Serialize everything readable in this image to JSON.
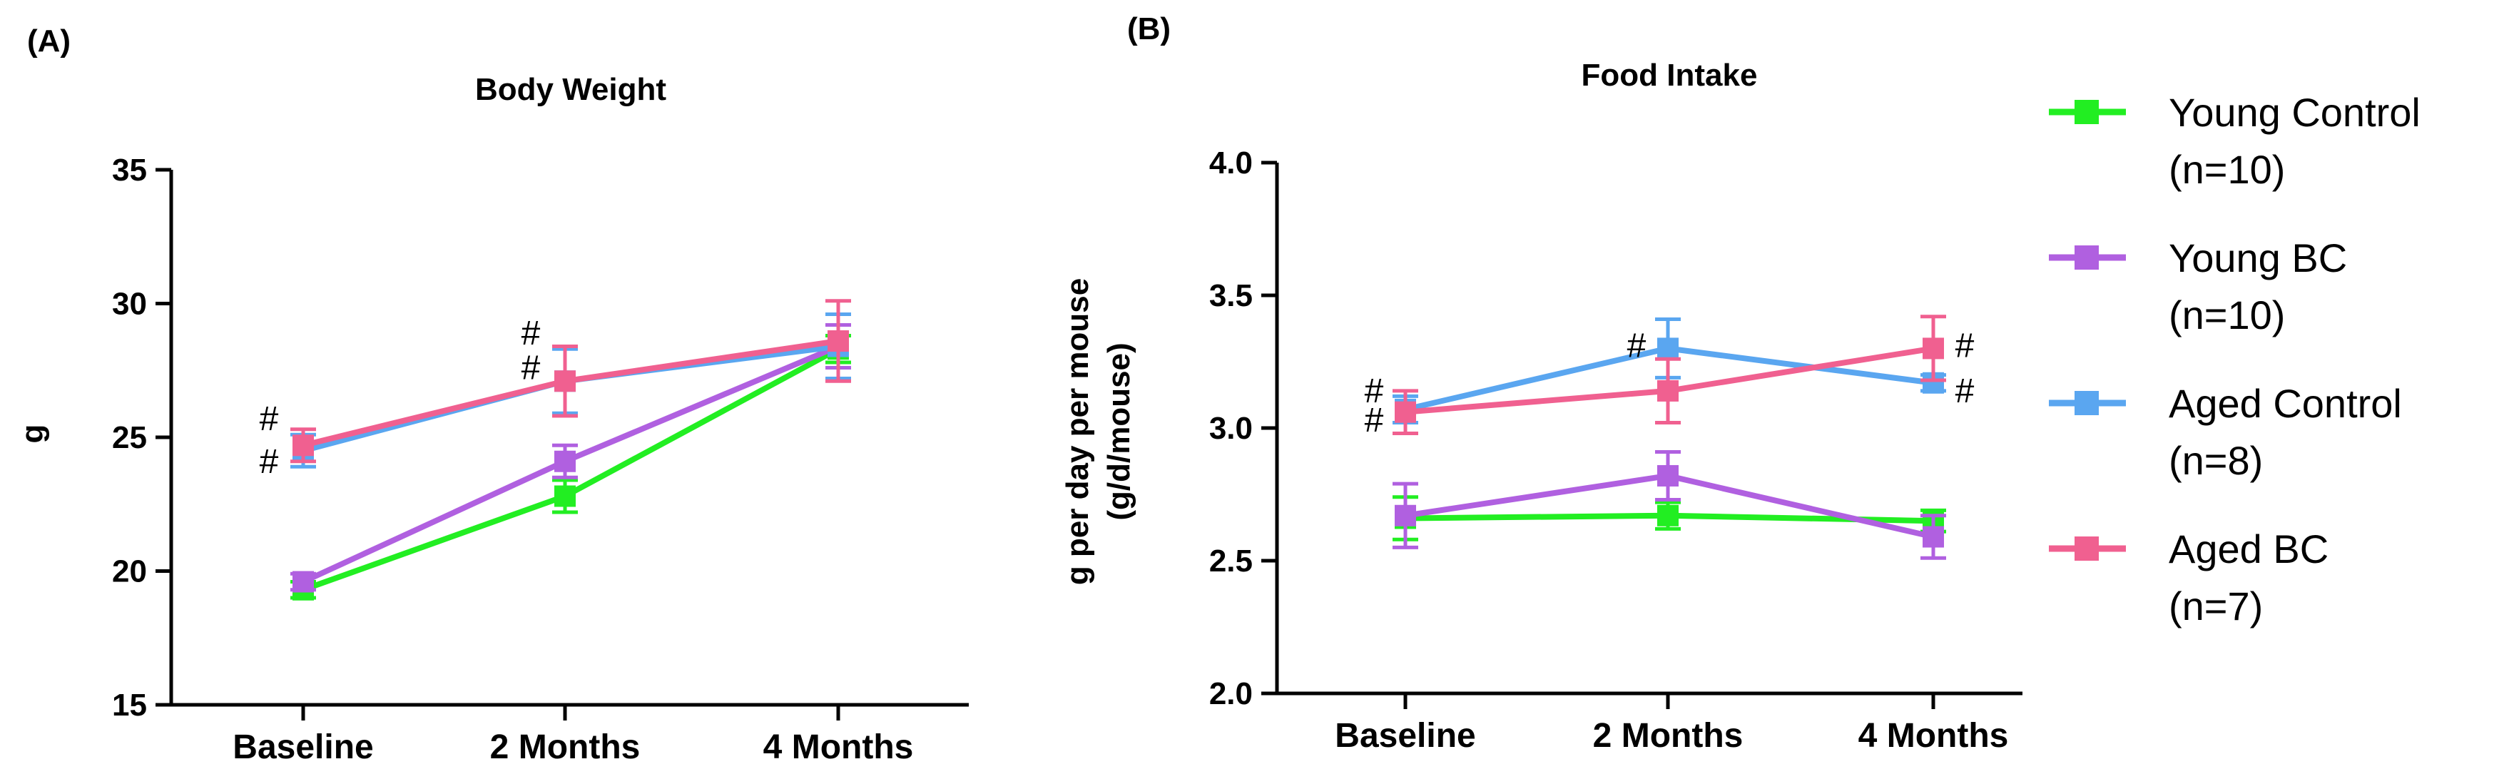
{
  "legend": {
    "items": [
      {
        "name": "Young Control",
        "n": "(n=10)",
        "color": "#22ee22"
      },
      {
        "name": "Young BC",
        "n": "(n=10)",
        "color": "#b060e0"
      },
      {
        "name": "Aged Control",
        "n": "(n=8)",
        "color": "#5aa6f0"
      },
      {
        "name": "Aged BC",
        "n": "(n=7)",
        "color": "#f06090"
      }
    ]
  },
  "chart_data": [
    {
      "panel": "(A)",
      "type": "line",
      "title": "Body Weight",
      "ylabel": "g",
      "xlabel": "",
      "categories": [
        "Baseline",
        "2 Months",
        "4 Months"
      ],
      "ylim": [
        15,
        35
      ],
      "yticks": [
        15,
        20,
        25,
        30,
        35
      ],
      "yticklabels": [
        "15",
        "20",
        "25",
        "30",
        "35"
      ],
      "series": [
        {
          "name": "Young Control",
          "color": "#22ee22",
          "values": [
            19.3,
            22.8,
            28.3
          ],
          "errors": [
            0.3,
            0.6,
            0.5
          ]
        },
        {
          "name": "Young BC",
          "color": "#b060e0",
          "values": [
            19.6,
            24.1,
            28.4
          ],
          "errors": [
            0.3,
            0.6,
            0.8
          ]
        },
        {
          "name": "Aged Control",
          "color": "#5aa6f0",
          "values": [
            24.5,
            27.1,
            28.4
          ],
          "errors": [
            0.6,
            1.2,
            1.2
          ]
        },
        {
          "name": "Aged BC",
          "color": "#f06090",
          "values": [
            24.7,
            27.1,
            28.6
          ],
          "errors": [
            0.6,
            1.3,
            1.5
          ]
        }
      ],
      "annotations": [
        {
          "label": "#",
          "category": 0,
          "y": 25.7,
          "side": "left"
        },
        {
          "label": "#",
          "category": 0,
          "y": 24.1,
          "side": "left"
        },
        {
          "label": "#",
          "category": 1,
          "y": 28.9,
          "side": "left"
        },
        {
          "label": "#",
          "category": 1,
          "y": 27.6,
          "side": "left"
        }
      ]
    },
    {
      "panel": "(B)",
      "type": "line",
      "title": "Food Intake",
      "ylabel": "g per day per mouse (g/d/mouse)",
      "ylabel_lines": [
        "g per day per mouse",
        "(g/d/mouse)"
      ],
      "xlabel": "",
      "categories": [
        "Baseline",
        "2 Months",
        "4 Months"
      ],
      "ylim": [
        2.0,
        4.0
      ],
      "yticks": [
        2.0,
        2.5,
        3.0,
        3.5,
        4.0
      ],
      "yticklabels": [
        "2.0",
        "2.5",
        "3.0",
        "3.5",
        "4.0"
      ],
      "series": [
        {
          "name": "Young Control",
          "color": "#22ee22",
          "values": [
            2.66,
            2.67,
            2.65
          ],
          "errors": [
            0.08,
            0.05,
            0.04
          ]
        },
        {
          "name": "Young BC",
          "color": "#b060e0",
          "values": [
            2.67,
            2.82,
            2.59
          ],
          "errors": [
            0.12,
            0.09,
            0.08
          ]
        },
        {
          "name": "Aged Control",
          "color": "#5aa6f0",
          "values": [
            3.07,
            3.3,
            3.17
          ],
          "errors": [
            0.05,
            0.11,
            0.03
          ]
        },
        {
          "name": "Aged BC",
          "color": "#f06090",
          "values": [
            3.06,
            3.14,
            3.3
          ],
          "errors": [
            0.08,
            0.12,
            0.12
          ]
        }
      ],
      "annotations": [
        {
          "label": "#",
          "category": 0,
          "y": 3.14,
          "side": "left"
        },
        {
          "label": "#",
          "category": 0,
          "y": 3.03,
          "side": "left"
        },
        {
          "label": "#",
          "category": 1,
          "y": 3.31,
          "side": "left"
        },
        {
          "label": "#",
          "category": 2,
          "y": 3.31,
          "side": "right"
        },
        {
          "label": "#",
          "category": 2,
          "y": 3.14,
          "side": "right"
        }
      ]
    }
  ]
}
